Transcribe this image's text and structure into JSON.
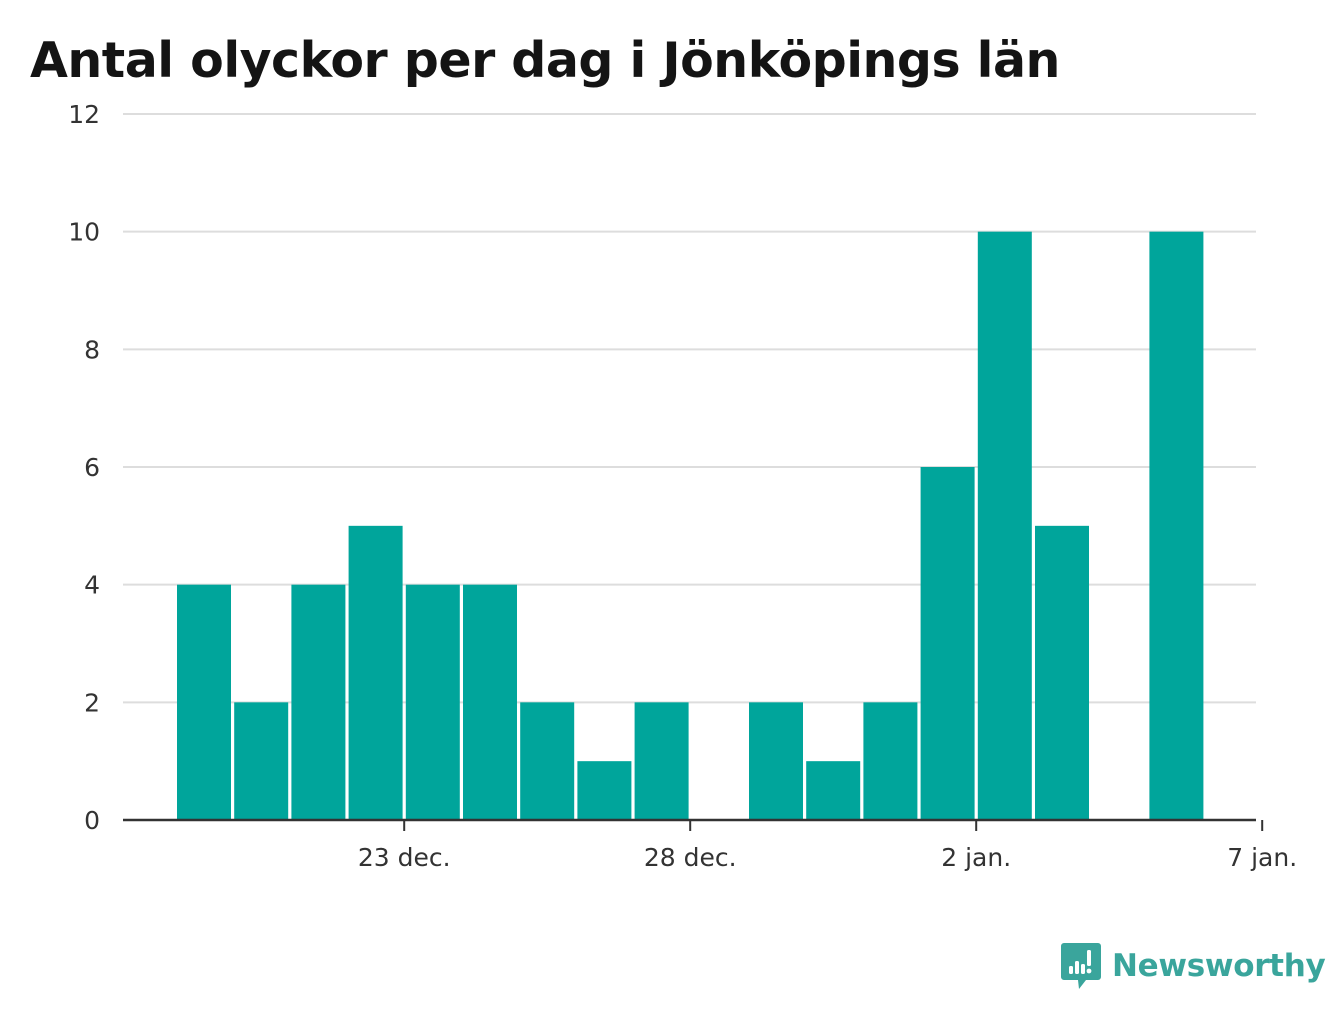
{
  "chart_data": {
    "type": "bar",
    "title": "Antal olyckor per dag i Jönköpings län",
    "xlabel": "",
    "ylabel": "",
    "categories": [
      "2018-12-19",
      "2018-12-20",
      "2018-12-21",
      "2018-12-22",
      "2018-12-23",
      "2018-12-24",
      "2018-12-25",
      "2018-12-26",
      "2018-12-27",
      "2018-12-28",
      "2018-12-29",
      "2018-12-30",
      "2018-12-31",
      "2019-01-01",
      "2019-01-02",
      "2019-01-03",
      "2019-01-04",
      "2019-01-05",
      "2019-01-06",
      "2019-01-07"
    ],
    "values": [
      4,
      2,
      4,
      5,
      4,
      4,
      2,
      1,
      2,
      0,
      2,
      1,
      2,
      6,
      10,
      5,
      0,
      10,
      0,
      0
    ],
    "ylim": [
      0,
      12
    ],
    "y_ticks": [
      0,
      2,
      4,
      6,
      8,
      10,
      12
    ],
    "x_ticks": [
      {
        "label": "23 dec.",
        "category": "2018-12-23"
      },
      {
        "label": "28 dec.",
        "category": "2018-12-28"
      },
      {
        "label": "2 jan.",
        "category": "2019-01-02"
      },
      {
        "label": "7 jan.",
        "category": "2019-01-07"
      }
    ],
    "grid": true,
    "legend": "none"
  },
  "colors": {
    "bar": "#00a59b",
    "grid": "#dddddd",
    "axis": "#333333",
    "brand": "#3aa59c"
  },
  "brand": {
    "name": "Newsworthy",
    "icon": "newsworthy-logo-icon"
  }
}
